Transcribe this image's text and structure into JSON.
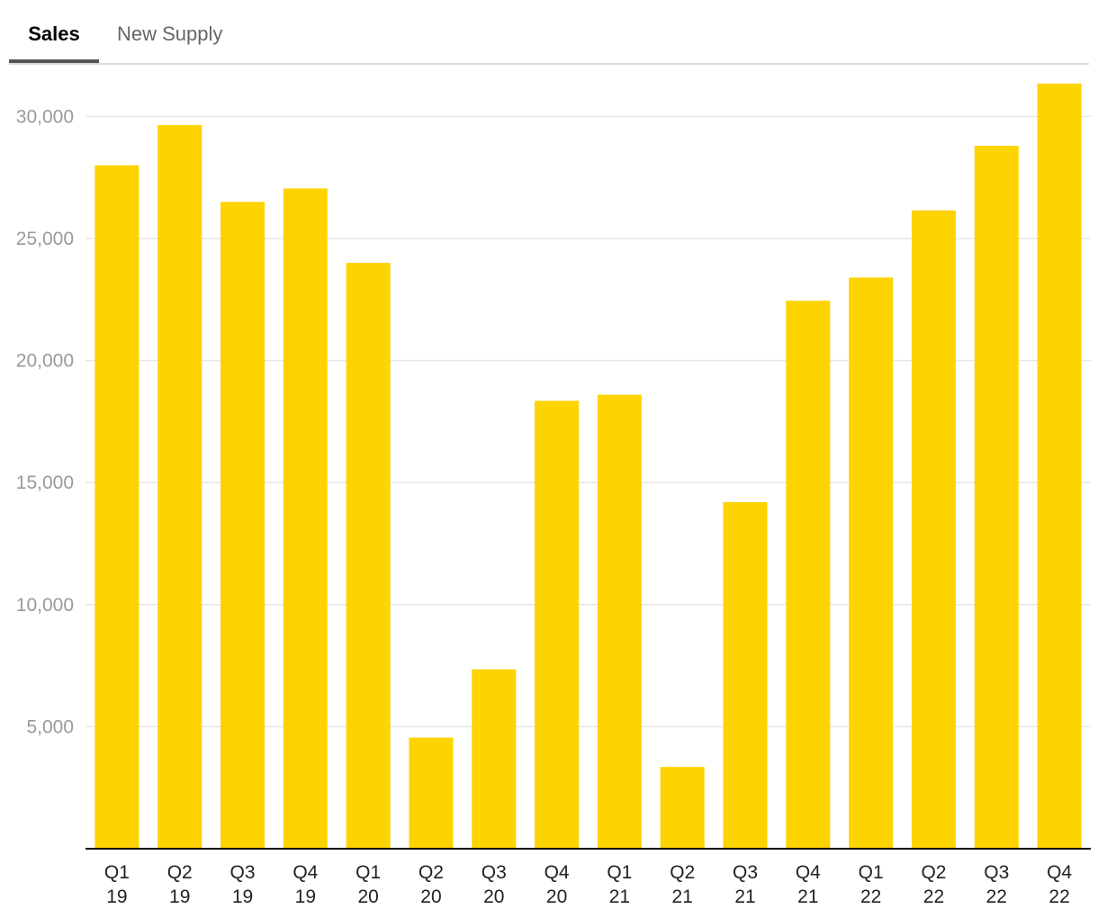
{
  "tabs": [
    {
      "label": "Sales",
      "active": true
    },
    {
      "label": "New Supply",
      "active": false
    }
  ],
  "colors": {
    "bar": "#FDD300",
    "grid": "#e6e6e6",
    "axis": "#000000",
    "tab_underline": "#555555"
  },
  "chart_data": {
    "type": "bar",
    "title": "",
    "xlabel": "",
    "ylabel": "",
    "categories": [
      [
        "Q1",
        "19"
      ],
      [
        "Q2",
        "19"
      ],
      [
        "Q3",
        "19"
      ],
      [
        "Q4",
        "19"
      ],
      [
        "Q1",
        "20"
      ],
      [
        "Q2",
        "20"
      ],
      [
        "Q3",
        "20"
      ],
      [
        "Q4",
        "20"
      ],
      [
        "Q1",
        "21"
      ],
      [
        "Q2",
        "21"
      ],
      [
        "Q3",
        "21"
      ],
      [
        "Q4",
        "21"
      ],
      [
        "Q1",
        "22"
      ],
      [
        "Q2",
        "22"
      ],
      [
        "Q3",
        "22"
      ],
      [
        "Q4",
        "22"
      ]
    ],
    "values": [
      28000,
      29650,
      26500,
      27050,
      24000,
      4550,
      7350,
      18350,
      18600,
      3350,
      14200,
      22450,
      23400,
      26150,
      28800,
      31350
    ],
    "ylim": [
      0,
      32000
    ],
    "yticks": [
      {
        "value": 5000,
        "label": "5,000"
      },
      {
        "value": 10000,
        "label": "10,000"
      },
      {
        "value": 15000,
        "label": "15,000"
      },
      {
        "value": 20000,
        "label": "20,000"
      },
      {
        "value": 25000,
        "label": "25,000"
      },
      {
        "value": 30000,
        "label": "30,000"
      }
    ],
    "grid": true,
    "legend": "none"
  }
}
